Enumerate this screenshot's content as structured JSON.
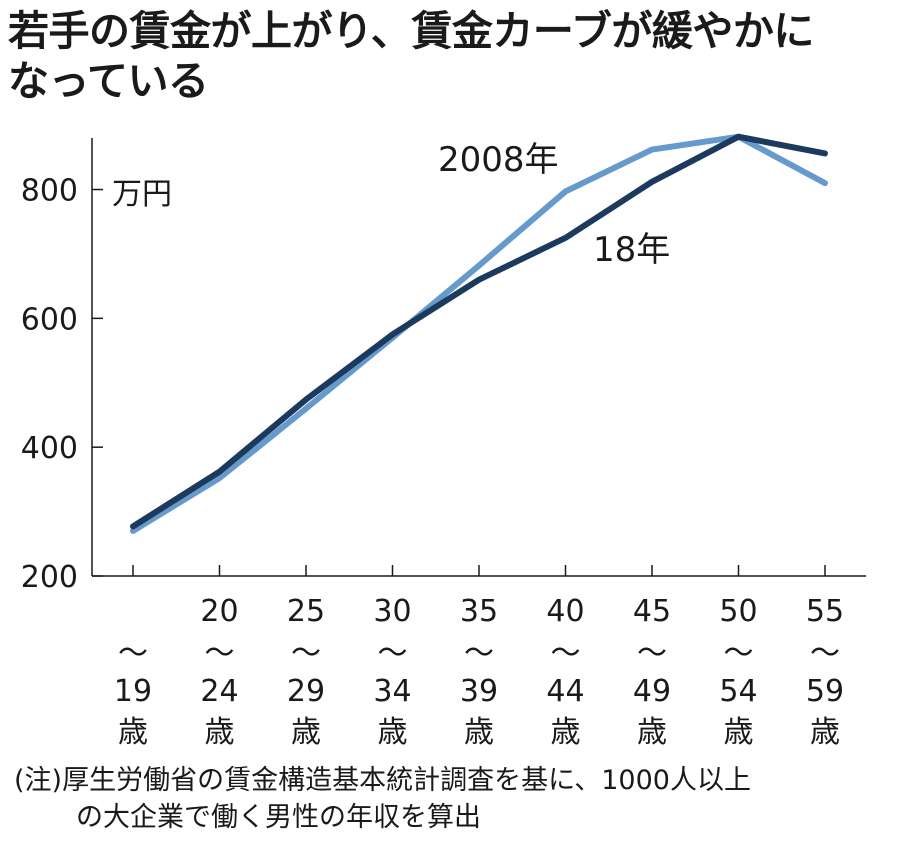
{
  "title_lines": [
    "若手の賃金が上がり、賃金カーブが緩やかに",
    "なっている"
  ],
  "note_lines": [
    "(注)厚生労働省の賃金構造基本統計調査を基に、1000人以上",
    "の大企業で働く男性の年収を算出"
  ],
  "chart_data": {
    "type": "line",
    "title": "若手の賃金が上がり、賃金カーブが緩やかになっている",
    "ylabel": "万円",
    "ylim": [
      200,
      880
    ],
    "yticks": [
      200,
      400,
      600,
      800
    ],
    "categories": [
      [
        "",
        "〜",
        "19",
        "歳"
      ],
      [
        "20",
        "〜",
        "24",
        "歳"
      ],
      [
        "25",
        "〜",
        "29",
        "歳"
      ],
      [
        "30",
        "〜",
        "34",
        "歳"
      ],
      [
        "35",
        "〜",
        "39",
        "歳"
      ],
      [
        "40",
        "〜",
        "44",
        "歳"
      ],
      [
        "45",
        "〜",
        "49",
        "歳"
      ],
      [
        "50",
        "〜",
        "54",
        "歳"
      ],
      [
        "55",
        "〜",
        "59",
        "歳"
      ]
    ],
    "series": [
      {
        "name": "2008年",
        "color": "#6699cc",
        "values": [
          270,
          352,
          460,
          570,
          682,
          797,
          862,
          882,
          810
        ]
      },
      {
        "name": "18年",
        "color": "#1c3a5e",
        "values": [
          277,
          362,
          474,
          575,
          660,
          725,
          812,
          882,
          856
        ]
      }
    ],
    "grid": false,
    "legend": "inline"
  }
}
